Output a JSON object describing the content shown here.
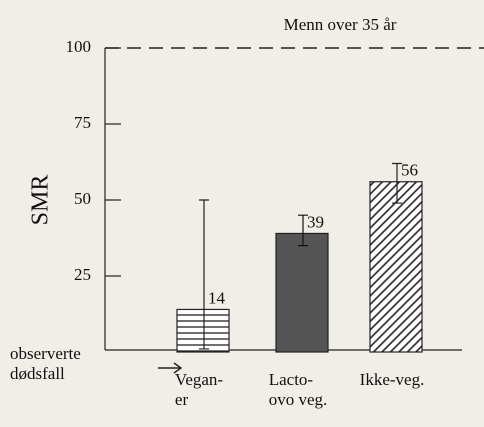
{
  "chart_data": {
    "type": "bar",
    "title": "Menn over 35 år",
    "y_label": "SMR",
    "annotation": "observerte\ndødsfall",
    "categories": [
      "Vegan-\ner",
      "Lacto-\novo veg.",
      "Ikke-veg."
    ],
    "values": [
      14,
      39,
      56
    ],
    "ci_low": [
      1,
      35,
      49
    ],
    "ci_high": [
      50,
      45,
      62
    ],
    "patterns": [
      "horizontal",
      "solid",
      "diagonal"
    ],
    "colors": [
      "#ffffff",
      "#555555",
      "#ffffff"
    ],
    "reference_line": 100,
    "ylim": [
      0,
      100
    ],
    "yticks": [
      25,
      50,
      75,
      100
    ]
  }
}
